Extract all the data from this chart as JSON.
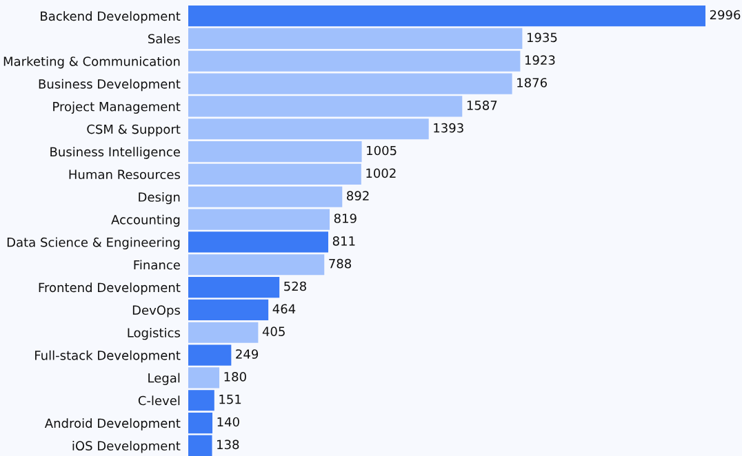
{
  "chart_data": {
    "type": "bar",
    "orientation": "horizontal",
    "data_labels": true,
    "categories": [
      "Backend Development",
      "Sales",
      "Marketing & Communication",
      "Business Development",
      "Project Management",
      "CSM & Support",
      "Business Intelligence",
      "Human Resources",
      "Design",
      "Accounting",
      "Data Science & Engineering",
      "Finance",
      "Frontend Development",
      "DevOps",
      "Logistics",
      "Full-stack Development",
      "Legal",
      "C-level",
      "Android Development",
      "iOS Development"
    ],
    "values": [
      2996,
      1935,
      1923,
      1876,
      1587,
      1393,
      1005,
      1002,
      892,
      819,
      811,
      788,
      528,
      464,
      405,
      249,
      180,
      151,
      140,
      138
    ],
    "colors": [
      "#3b7af5",
      "#a0c0fc",
      "#a0c0fc",
      "#a0c0fc",
      "#a0c0fc",
      "#a0c0fc",
      "#a0c0fc",
      "#a0c0fc",
      "#a0c0fc",
      "#a0c0fc",
      "#3b7af5",
      "#a0c0fc",
      "#3b7af5",
      "#3b7af5",
      "#a0c0fc",
      "#3b7af5",
      "#a0c0fc",
      "#3b7af5",
      "#3b7af5",
      "#3b7af5"
    ]
  }
}
